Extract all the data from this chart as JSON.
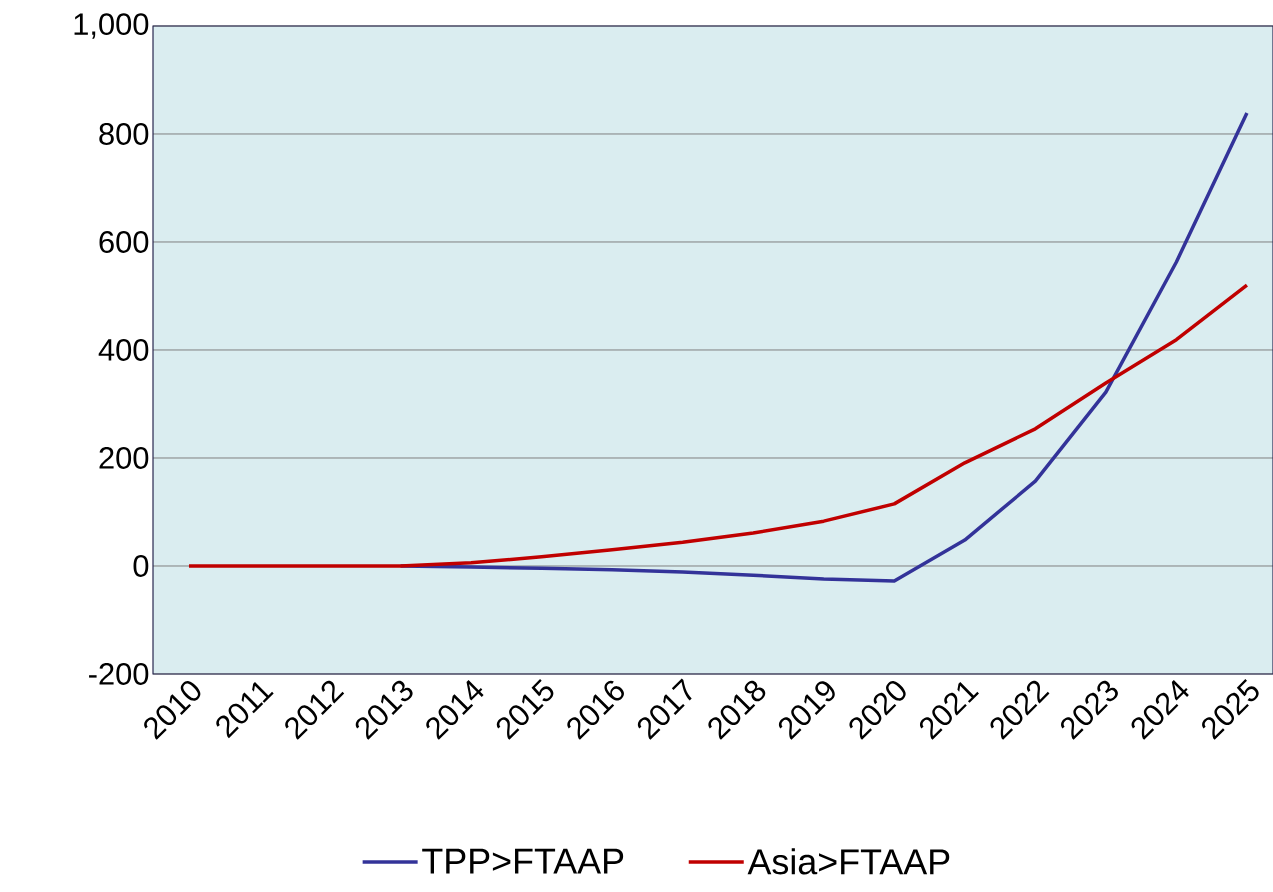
{
  "chart_data": {
    "type": "line",
    "categories": [
      "2010",
      "2011",
      "2012",
      "2013",
      "2014",
      "2015",
      "2016",
      "2017",
      "2018",
      "2019",
      "2020",
      "2021",
      "2022",
      "2023",
      "2024",
      "2025"
    ],
    "series": [
      {
        "name": "TPP>FTAAP",
        "color": "#333399",
        "values": [
          null,
          null,
          null,
          0,
          -2,
          -4,
          -7,
          -11,
          -17,
          -24,
          -28,
          48,
          157,
          322,
          563,
          839
        ]
      },
      {
        "name": "Asia>FTAAP",
        "color": "#c00000",
        "values": [
          0,
          0,
          0,
          0,
          6,
          17,
          30,
          44,
          61,
          83,
          115,
          191,
          254,
          339,
          419,
          520
        ]
      }
    ],
    "ylim": [
      -200,
      1000
    ],
    "yticks": [
      -200,
      0,
      200,
      400,
      600,
      800,
      {
        "value": 1000,
        "label": "1,000"
      }
    ],
    "grid": "y",
    "legend": "bottom",
    "marker": "none",
    "line_style": "solid"
  }
}
